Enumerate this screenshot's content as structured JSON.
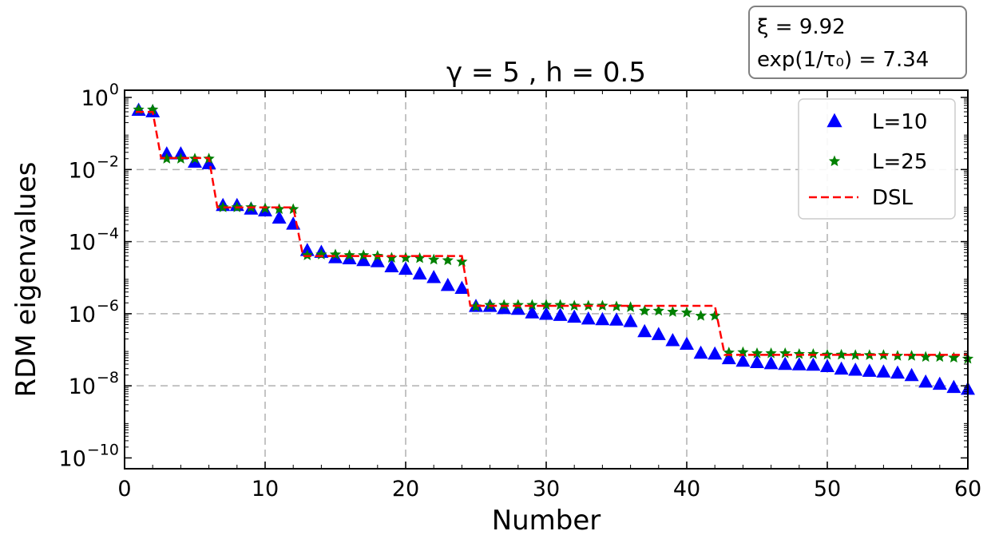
{
  "chart_data": {
    "type": "scatter",
    "title": "γ = 5 ,    h = 0.5",
    "xlabel": "Number",
    "ylabel": "RDM eigenvalues",
    "xlim": [
      0,
      60
    ],
    "ylim_log10": [
      -10.3,
      0.2
    ],
    "yscale": "log",
    "grid": true,
    "legend_position": "top-right",
    "x_ticks": [
      "0",
      "10",
      "20",
      "30",
      "40",
      "50",
      "60"
    ],
    "y_ticks": [
      {
        "exp": 0,
        "base": "10",
        "sup": "0"
      },
      {
        "exp": -2,
        "base": "10",
        "sup": "−2"
      },
      {
        "exp": -4,
        "base": "10",
        "sup": "−4"
      },
      {
        "exp": -6,
        "base": "10",
        "sup": "−6"
      },
      {
        "exp": -8,
        "base": "10",
        "sup": "−8"
      },
      {
        "exp": -10,
        "base": "10",
        "sup": "−10"
      }
    ],
    "info_box": {
      "line1": "ξ = 9.92",
      "line2": "exp(1/τ₀) = 7.34"
    },
    "series": [
      {
        "name": "L=10",
        "marker": "triangle",
        "color": "#0000ff",
        "x": [
          1,
          2,
          3,
          4,
          5,
          6,
          7,
          8,
          9,
          10,
          11,
          12,
          13,
          14,
          15,
          16,
          17,
          18,
          19,
          20,
          21,
          22,
          23,
          24,
          25,
          26,
          27,
          28,
          29,
          30,
          31,
          32,
          33,
          34,
          35,
          36,
          37,
          38,
          39,
          40,
          41,
          42,
          43,
          44,
          45,
          46,
          47,
          48,
          49,
          50,
          51,
          52,
          53,
          54,
          55,
          56,
          57,
          58,
          59,
          60
        ],
        "y_log10": [
          -0.36,
          -0.4,
          -1.57,
          -1.57,
          -1.8,
          -1.84,
          -3.0,
          -3.0,
          -3.1,
          -3.15,
          -3.35,
          -3.52,
          -4.25,
          -4.3,
          -4.45,
          -4.48,
          -4.53,
          -4.56,
          -4.7,
          -4.77,
          -4.9,
          -5.0,
          -5.22,
          -5.3,
          -5.8,
          -5.8,
          -5.86,
          -5.88,
          -5.98,
          -6.02,
          -6.05,
          -6.1,
          -6.15,
          -6.17,
          -6.18,
          -6.22,
          -6.5,
          -6.58,
          -6.75,
          -6.85,
          -7.1,
          -7.12,
          -7.25,
          -7.32,
          -7.36,
          -7.39,
          -7.41,
          -7.42,
          -7.43,
          -7.47,
          -7.54,
          -7.57,
          -7.6,
          -7.62,
          -7.65,
          -7.72,
          -7.9,
          -7.96,
          -8.05,
          -8.1
        ]
      },
      {
        "name": "L=25",
        "marker": "star",
        "color": "#008000",
        "x": [
          1,
          2,
          3,
          4,
          5,
          6,
          7,
          8,
          9,
          10,
          11,
          12,
          13,
          14,
          15,
          16,
          17,
          18,
          19,
          20,
          21,
          22,
          23,
          24,
          25,
          26,
          27,
          28,
          29,
          30,
          31,
          32,
          33,
          34,
          35,
          36,
          37,
          38,
          39,
          40,
          41,
          42,
          43,
          44,
          45,
          46,
          47,
          48,
          49,
          50,
          51,
          52,
          53,
          54,
          55,
          56,
          57,
          58,
          59,
          60
        ],
        "y_log10": [
          -0.34,
          -0.34,
          -1.7,
          -1.7,
          -1.7,
          -1.7,
          -3.05,
          -3.05,
          -3.05,
          -3.08,
          -3.1,
          -3.1,
          -4.38,
          -4.36,
          -4.36,
          -4.38,
          -4.38,
          -4.4,
          -4.45,
          -4.45,
          -4.46,
          -4.5,
          -4.52,
          -4.56,
          -5.8,
          -5.76,
          -5.76,
          -5.76,
          -5.76,
          -5.76,
          -5.76,
          -5.78,
          -5.78,
          -5.78,
          -5.8,
          -5.82,
          -5.92,
          -5.92,
          -5.95,
          -5.97,
          -6.06,
          -6.06,
          -7.08,
          -7.07,
          -7.1,
          -7.1,
          -7.1,
          -7.12,
          -7.12,
          -7.14,
          -7.14,
          -7.15,
          -7.15,
          -7.15,
          -7.17,
          -7.17,
          -7.2,
          -7.2,
          -7.22,
          -7.25
        ]
      },
      {
        "name": "DSL",
        "marker": "dashed-line",
        "color": "#ff0000",
        "x": [
          0.8,
          2.0,
          2.6,
          6.0,
          6.6,
          12.0,
          12.7,
          24.0,
          24.6,
          42.0,
          42.7,
          60.0
        ],
        "y_log10": [
          -0.4,
          -0.4,
          -1.68,
          -1.68,
          -3.05,
          -3.05,
          -4.4,
          -4.4,
          -5.78,
          -5.78,
          -7.14,
          -7.14
        ]
      }
    ]
  }
}
